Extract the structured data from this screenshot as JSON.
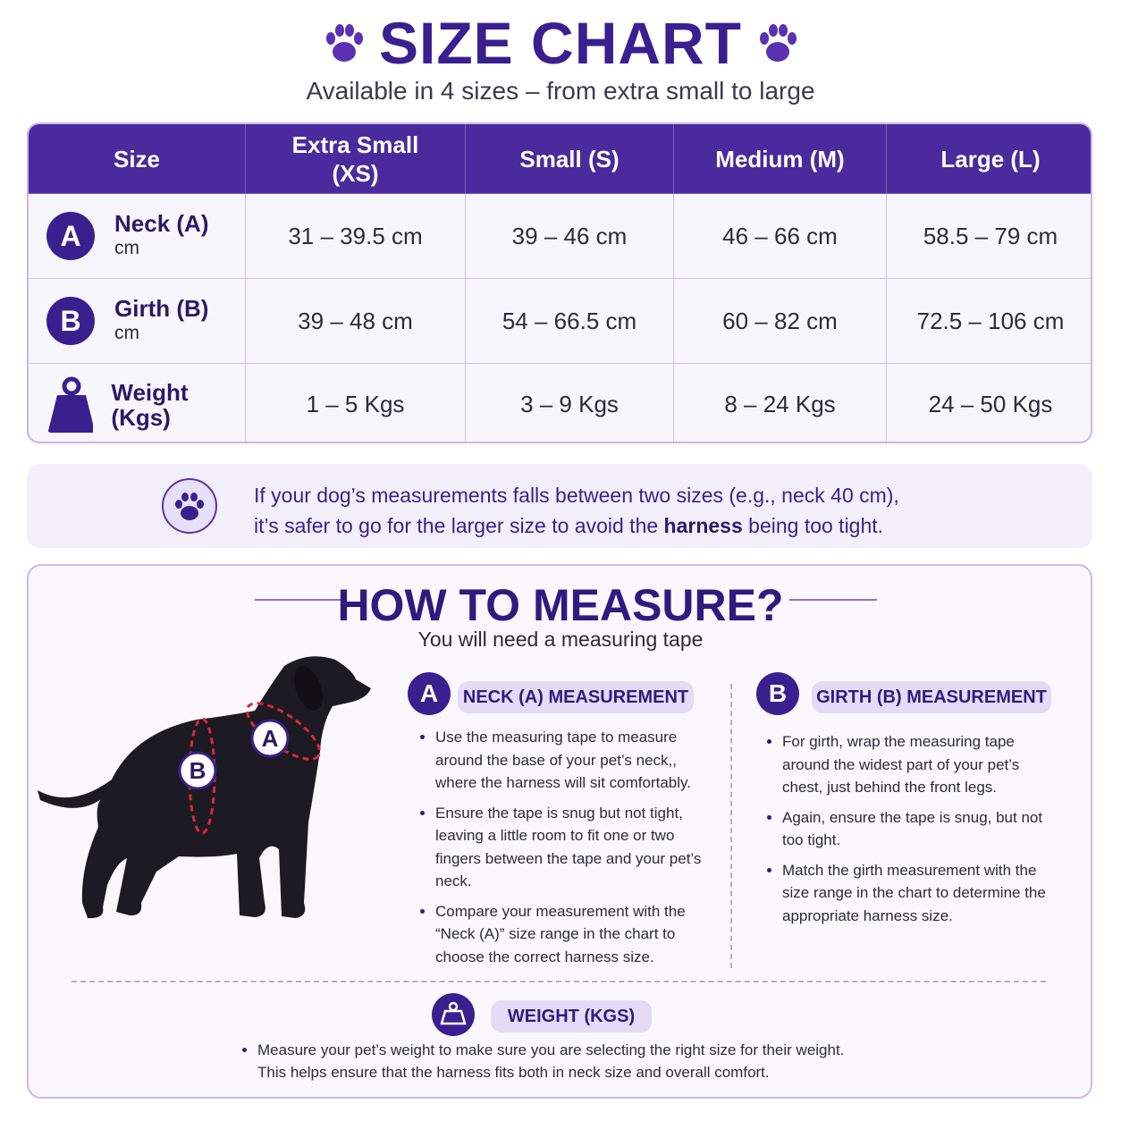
{
  "header": {
    "title": "SIZE CHART",
    "subtitle": "Available in 4 sizes – from extra small to large"
  },
  "table": {
    "columns": [
      "Size",
      "Extra Small (XS)",
      "Small (S)",
      "Medium (M)",
      "Large (L)"
    ],
    "rows": [
      {
        "badge": "A",
        "label": "Neck (A)",
        "unit": "cm",
        "cells": [
          "31 – 39.5 cm",
          "39 – 46 cm",
          "46 – 66 cm",
          "58.5 – 79 cm"
        ]
      },
      {
        "badge": "B",
        "label": "Girth (B)",
        "unit": "cm",
        "cells": [
          "39 – 48 cm",
          "54 – 66.5 cm",
          "60 – 82 cm",
          "72.5 – 106 cm"
        ]
      },
      {
        "label": "Weight (Kgs)",
        "cells": [
          "1 – 5 Kgs",
          "3 – 9 Kgs",
          "8 – 24 Kgs",
          "24 – 50 Kgs"
        ]
      }
    ]
  },
  "note": {
    "line1": "If your dog’s measurements falls between two sizes (e.g., neck 40 cm),",
    "line2_start": "it’s safer to go for the larger size to avoid the ",
    "line2_bold": "harness",
    "line2_end": " being too tight."
  },
  "measure": {
    "title": "HOW TO MEASURE?",
    "subtitle": "You will need a measuring tape",
    "dog_labels": [
      "A",
      "B"
    ],
    "sections": [
      {
        "badge": "A",
        "heading": "NECK (A) MEASUREMENT",
        "bullets": [
          "Use the measuring tape to measure around the base of your pet’s neck,, where the harness will sit comfortably.",
          "Ensure the tape is snug but not tight, leaving a little room to fit one or two fingers between the tape and your pet’s neck.",
          "Compare your measurement with the “Neck (A)” size range in the chart to choose the correct harness size."
        ]
      },
      {
        "badge": "B",
        "heading": "GIRTH (B) MEASUREMENT",
        "bullets": [
          "For girth, wrap the measuring tape around the widest part of your pet’s chest, just behind the front legs.",
          "Again, ensure the tape is snug, but not too tight.",
          "Match the girth measurement with the size range in the chart to determine the appropriate harness size."
        ]
      }
    ],
    "weight": {
      "heading": "WEIGHT (KGS)",
      "lines": [
        "Measure your pet’s weight to make sure you are selecting the right size for their weight.",
        "This helps ensure that the harness fits both in neck size and overall comfort."
      ]
    }
  }
}
